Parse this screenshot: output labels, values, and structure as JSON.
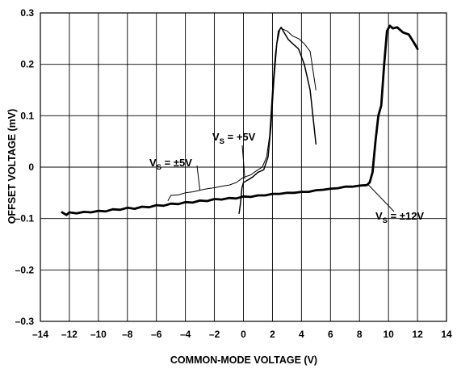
{
  "chart_data": {
    "type": "line",
    "xlabel": "COMMON-MODE VOLTAGE (V)",
    "ylabel": "OFFSET VOLTAGE (mV)",
    "xlim": [
      -14,
      14
    ],
    "ylim": [
      -0.3,
      0.3
    ],
    "x_ticks": [
      -14,
      -12,
      -10,
      -8,
      -6,
      -4,
      -2,
      0,
      2,
      4,
      6,
      8,
      10,
      12,
      14
    ],
    "x_tick_labels": [
      "–14",
      "–12",
      "–10",
      "–8",
      "–6",
      "–4",
      "–2",
      "0",
      "2",
      "4",
      "6",
      "8",
      "10",
      "12",
      "14"
    ],
    "y_ticks": [
      -0.3,
      -0.2,
      -0.1,
      0,
      0.1,
      0.2,
      0.3
    ],
    "y_tick_labels": [
      "–0.3",
      "–0.2",
      "–0.1",
      "0",
      "0.1",
      "0.2",
      "0.3"
    ],
    "grid": true,
    "series": [
      {
        "label": {
          "main": "V",
          "sub": "S",
          "rest": " = ±12V"
        },
        "style": "thick",
        "x": [
          -12.5,
          -12.2,
          -12,
          -11.5,
          -11,
          -10.5,
          -10,
          -9.5,
          -9,
          -8.5,
          -8,
          -7.5,
          -7,
          -6.5,
          -6,
          -5.5,
          -5,
          -4.5,
          -4,
          -3.5,
          -3,
          -2.5,
          -2,
          -1.5,
          -1,
          -0.5,
          0,
          0.5,
          1,
          1.5,
          2,
          2.5,
          3,
          3.5,
          4,
          4.5,
          5,
          5.5,
          6,
          6.5,
          7,
          7.5,
          8,
          8.5,
          8.7,
          8.9,
          9.1,
          9.3,
          9.5,
          9.7,
          9.9,
          10.1,
          10.3,
          10.6,
          11,
          11.4,
          11.8,
          12
        ],
        "y": [
          -0.088,
          -0.093,
          -0.088,
          -0.09,
          -0.087,
          -0.088,
          -0.085,
          -0.086,
          -0.082,
          -0.083,
          -0.079,
          -0.081,
          -0.077,
          -0.078,
          -0.074,
          -0.075,
          -0.071,
          -0.072,
          -0.068,
          -0.069,
          -0.065,
          -0.066,
          -0.062,
          -0.063,
          -0.06,
          -0.061,
          -0.057,
          -0.058,
          -0.055,
          -0.055,
          -0.052,
          -0.052,
          -0.05,
          -0.05,
          -0.048,
          -0.048,
          -0.045,
          -0.044,
          -0.042,
          -0.041,
          -0.038,
          -0.038,
          -0.036,
          -0.035,
          -0.03,
          -0.01,
          0.05,
          0.1,
          0.12,
          0.2,
          0.265,
          0.275,
          0.27,
          0.272,
          0.262,
          0.258,
          0.24,
          0.23
        ]
      },
      {
        "label": {
          "main": "V",
          "sub": "S",
          "rest": " = ±5V"
        },
        "style": "thin",
        "x": [
          -5.2,
          -5,
          -4.5,
          -4,
          -3.5,
          -3,
          -2.5,
          -2,
          -1.5,
          -1,
          -0.5,
          0,
          0.5,
          1,
          1.3,
          1.6,
          1.8,
          2.0,
          2.2,
          2.4,
          2.6,
          3.0,
          3.4,
          3.8,
          4.2,
          4.6,
          5.0
        ],
        "y": [
          -0.065,
          -0.055,
          -0.054,
          -0.05,
          -0.048,
          -0.045,
          -0.042,
          -0.04,
          -0.037,
          -0.035,
          -0.03,
          -0.02,
          -0.015,
          -0.005,
          0.0,
          0.02,
          0.06,
          0.15,
          0.22,
          0.265,
          0.27,
          0.265,
          0.255,
          0.25,
          0.24,
          0.225,
          0.15
        ]
      },
      {
        "label": {
          "main": "V",
          "sub": "S",
          "rest": " = +5V"
        },
        "style": "medium",
        "x": [
          -0.3,
          -0.2,
          -0.1,
          0,
          0.3,
          0.6,
          1.0,
          1.4,
          1.7,
          1.9,
          2.1,
          2.3,
          2.5,
          2.6,
          2.8,
          3.1,
          3.4,
          3.8,
          4.2,
          4.6,
          5.0
        ],
        "y": [
          -0.09,
          -0.07,
          -0.04,
          -0.03,
          -0.025,
          -0.02,
          -0.01,
          -0.005,
          0.02,
          0.08,
          0.17,
          0.24,
          0.268,
          0.272,
          0.262,
          0.248,
          0.24,
          0.23,
          0.2,
          0.15,
          0.045
        ]
      }
    ]
  }
}
